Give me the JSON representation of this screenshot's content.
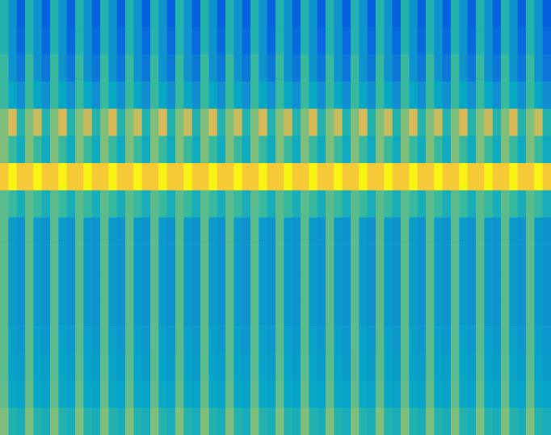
{
  "chart_data": {
    "type": "heatmap",
    "tick_labels": false,
    "color_range": [
      0,
      1
    ],
    "cells": [
      [
        0.45,
        0.3,
        0.12,
        0.45,
        0.3,
        0.12,
        0.45,
        0.3,
        0.12,
        0.45,
        0.3,
        0.12,
        0.45,
        0.3,
        0.12,
        0.45,
        0.3,
        0.12,
        0.45,
        0.3,
        0.12,
        0.45,
        0.3,
        0.12,
        0.45,
        0.3,
        0.12,
        0.45,
        0.3,
        0.12,
        0.45,
        0.3,
        0.12,
        0.45,
        0.3,
        0.12,
        0.45,
        0.3,
        0.12,
        0.45,
        0.3,
        0.12,
        0.45,
        0.3,
        0.12,
        0.45,
        0.3,
        0.12,
        0.45,
        0.3,
        0.12,
        0.45,
        0.3,
        0.12,
        0.45,
        0.3,
        0.12,
        0.45,
        0.3,
        0.12,
        0.45,
        0.3,
        0.12,
        0.45,
        0.3,
        0.12
      ],
      [
        0.45,
        0.3,
        0.15,
        0.45,
        0.3,
        0.15,
        0.45,
        0.3,
        0.15,
        0.45,
        0.3,
        0.15,
        0.45,
        0.3,
        0.15,
        0.45,
        0.3,
        0.15,
        0.45,
        0.3,
        0.15,
        0.45,
        0.3,
        0.15,
        0.45,
        0.3,
        0.15,
        0.45,
        0.3,
        0.15,
        0.45,
        0.3,
        0.15,
        0.45,
        0.3,
        0.15,
        0.45,
        0.3,
        0.15,
        0.45,
        0.3,
        0.15,
        0.45,
        0.3,
        0.15,
        0.45,
        0.3,
        0.15,
        0.45,
        0.3,
        0.15,
        0.45,
        0.3,
        0.15,
        0.45,
        0.3,
        0.15,
        0.45,
        0.3,
        0.15,
        0.45,
        0.3,
        0.15,
        0.45,
        0.3,
        0.15
      ],
      [
        0.5,
        0.3,
        0.2,
        0.5,
        0.3,
        0.2,
        0.5,
        0.3,
        0.2,
        0.5,
        0.3,
        0.2,
        0.5,
        0.3,
        0.2,
        0.5,
        0.3,
        0.2,
        0.5,
        0.3,
        0.2,
        0.5,
        0.3,
        0.2,
        0.5,
        0.3,
        0.2,
        0.5,
        0.3,
        0.2,
        0.5,
        0.3,
        0.2,
        0.5,
        0.3,
        0.2,
        0.5,
        0.3,
        0.2,
        0.5,
        0.3,
        0.2,
        0.5,
        0.3,
        0.2,
        0.5,
        0.3,
        0.2,
        0.5,
        0.3,
        0.2,
        0.5,
        0.3,
        0.2,
        0.5,
        0.3,
        0.2,
        0.5,
        0.3,
        0.2,
        0.5,
        0.3,
        0.2,
        0.5,
        0.3,
        0.2
      ],
      [
        0.5,
        0.38,
        0.28,
        0.5,
        0.38,
        0.28,
        0.5,
        0.38,
        0.28,
        0.5,
        0.38,
        0.28,
        0.5,
        0.38,
        0.28,
        0.5,
        0.38,
        0.28,
        0.5,
        0.38,
        0.28,
        0.5,
        0.38,
        0.28,
        0.5,
        0.38,
        0.28,
        0.5,
        0.38,
        0.28,
        0.5,
        0.38,
        0.28,
        0.5,
        0.38,
        0.28,
        0.5,
        0.38,
        0.28,
        0.5,
        0.38,
        0.28,
        0.5,
        0.38,
        0.28,
        0.5,
        0.38,
        0.28,
        0.5,
        0.38,
        0.28,
        0.5,
        0.38,
        0.28,
        0.5,
        0.38,
        0.28,
        0.5,
        0.38,
        0.28,
        0.5,
        0.38,
        0.28,
        0.5,
        0.38,
        0.28
      ],
      [
        0.6,
        0.75,
        0.45,
        0.6,
        0.72,
        0.45,
        0.6,
        0.75,
        0.45,
        0.6,
        0.72,
        0.45,
        0.6,
        0.75,
        0.45,
        0.6,
        0.72,
        0.45,
        0.6,
        0.75,
        0.45,
        0.6,
        0.72,
        0.45,
        0.6,
        0.75,
        0.45,
        0.6,
        0.72,
        0.45,
        0.6,
        0.75,
        0.45,
        0.6,
        0.72,
        0.45,
        0.6,
        0.75,
        0.45,
        0.6,
        0.72,
        0.45,
        0.6,
        0.75,
        0.45,
        0.6,
        0.72,
        0.45,
        0.6,
        0.75,
        0.45,
        0.6,
        0.72,
        0.45,
        0.6,
        0.75,
        0.45,
        0.6,
        0.72,
        0.45,
        0.6,
        0.75,
        0.45,
        0.6,
        0.72,
        0.45
      ],
      [
        0.6,
        0.5,
        0.4,
        0.6,
        0.5,
        0.4,
        0.6,
        0.5,
        0.4,
        0.6,
        0.5,
        0.4,
        0.6,
        0.5,
        0.4,
        0.6,
        0.5,
        0.4,
        0.6,
        0.5,
        0.4,
        0.6,
        0.5,
        0.4,
        0.6,
        0.5,
        0.4,
        0.6,
        0.5,
        0.4,
        0.6,
        0.5,
        0.4,
        0.6,
        0.5,
        0.4,
        0.6,
        0.5,
        0.4,
        0.6,
        0.5,
        0.4,
        0.6,
        0.5,
        0.4,
        0.6,
        0.5,
        0.4,
        0.6,
        0.5,
        0.4,
        0.6,
        0.5,
        0.4,
        0.6,
        0.5,
        0.4,
        0.6,
        0.5,
        0.4,
        0.6,
        0.5,
        0.4,
        0.6,
        0.5,
        0.4
      ],
      [
        0.85,
        0.98,
        0.85,
        0.85,
        0.98,
        0.85,
        0.85,
        0.98,
        0.85,
        0.85,
        0.98,
        0.85,
        0.85,
        0.98,
        0.85,
        0.85,
        0.98,
        0.85,
        0.85,
        0.98,
        0.85,
        0.85,
        0.98,
        0.85,
        0.85,
        0.98,
        0.85,
        0.85,
        0.98,
        0.85,
        0.85,
        0.98,
        0.85,
        0.85,
        0.98,
        0.85,
        0.85,
        0.98,
        0.85,
        0.85,
        0.98,
        0.85,
        0.85,
        0.98,
        0.85,
        0.85,
        0.98,
        0.85,
        0.85,
        0.98,
        0.85,
        0.85,
        0.98,
        0.85,
        0.85,
        0.98,
        0.85,
        0.85,
        0.98,
        0.85,
        0.85,
        0.98,
        0.85,
        0.85,
        0.98,
        0.85
      ],
      [
        0.55,
        0.5,
        0.42,
        0.55,
        0.5,
        0.42,
        0.55,
        0.5,
        0.42,
        0.55,
        0.5,
        0.42,
        0.55,
        0.5,
        0.42,
        0.55,
        0.5,
        0.42,
        0.55,
        0.5,
        0.42,
        0.55,
        0.5,
        0.42,
        0.55,
        0.5,
        0.42,
        0.55,
        0.5,
        0.42,
        0.55,
        0.5,
        0.42,
        0.55,
        0.5,
        0.42,
        0.55,
        0.5,
        0.42,
        0.55,
        0.5,
        0.42,
        0.55,
        0.5,
        0.42,
        0.55,
        0.5,
        0.42,
        0.55,
        0.5,
        0.42,
        0.55,
        0.5,
        0.42,
        0.55,
        0.5,
        0.42,
        0.55,
        0.5,
        0.42,
        0.55,
        0.5,
        0.42,
        0.55,
        0.5,
        0.42
      ],
      [
        0.55,
        0.33,
        0.3,
        0.55,
        0.33,
        0.3,
        0.55,
        0.33,
        0.3,
        0.55,
        0.33,
        0.3,
        0.55,
        0.33,
        0.3,
        0.55,
        0.33,
        0.3,
        0.55,
        0.33,
        0.3,
        0.55,
        0.33,
        0.3,
        0.55,
        0.33,
        0.3,
        0.55,
        0.33,
        0.3,
        0.55,
        0.33,
        0.3,
        0.55,
        0.33,
        0.3,
        0.55,
        0.33,
        0.3,
        0.55,
        0.33,
        0.3,
        0.55,
        0.33,
        0.3,
        0.55,
        0.33,
        0.3,
        0.55,
        0.33,
        0.3,
        0.55,
        0.33,
        0.3,
        0.55,
        0.33,
        0.3,
        0.55,
        0.33,
        0.3,
        0.55,
        0.33,
        0.3,
        0.55,
        0.33,
        0.3
      ],
      [
        0.55,
        0.33,
        0.3,
        0.55,
        0.33,
        0.3,
        0.55,
        0.33,
        0.3,
        0.55,
        0.33,
        0.3,
        0.55,
        0.33,
        0.3,
        0.55,
        0.33,
        0.3,
        0.55,
        0.33,
        0.3,
        0.55,
        0.33,
        0.3,
        0.55,
        0.33,
        0.3,
        0.55,
        0.33,
        0.3,
        0.55,
        0.33,
        0.3,
        0.55,
        0.33,
        0.3,
        0.55,
        0.33,
        0.3,
        0.55,
        0.33,
        0.3,
        0.55,
        0.33,
        0.3,
        0.55,
        0.33,
        0.3,
        0.55,
        0.33,
        0.3,
        0.55,
        0.33,
        0.3,
        0.55,
        0.33,
        0.3,
        0.55,
        0.33,
        0.3,
        0.55,
        0.33,
        0.3,
        0.55,
        0.33,
        0.3
      ],
      [
        0.55,
        0.33,
        0.3,
        0.55,
        0.33,
        0.3,
        0.55,
        0.33,
        0.3,
        0.55,
        0.33,
        0.3,
        0.55,
        0.33,
        0.3,
        0.55,
        0.33,
        0.3,
        0.55,
        0.33,
        0.3,
        0.55,
        0.33,
        0.3,
        0.55,
        0.33,
        0.3,
        0.55,
        0.33,
        0.3,
        0.55,
        0.33,
        0.3,
        0.55,
        0.33,
        0.3,
        0.55,
        0.33,
        0.3,
        0.55,
        0.33,
        0.3,
        0.55,
        0.33,
        0.3,
        0.55,
        0.33,
        0.3,
        0.55,
        0.33,
        0.3,
        0.55,
        0.33,
        0.3,
        0.55,
        0.33,
        0.3,
        0.55,
        0.33,
        0.3,
        0.55,
        0.33,
        0.3,
        0.55,
        0.33,
        0.3
      ],
      [
        0.55,
        0.33,
        0.3,
        0.55,
        0.33,
        0.3,
        0.55,
        0.33,
        0.3,
        0.55,
        0.33,
        0.3,
        0.55,
        0.33,
        0.3,
        0.55,
        0.33,
        0.3,
        0.55,
        0.33,
        0.3,
        0.55,
        0.33,
        0.3,
        0.55,
        0.33,
        0.3,
        0.55,
        0.33,
        0.3,
        0.55,
        0.33,
        0.3,
        0.55,
        0.33,
        0.3,
        0.55,
        0.33,
        0.3,
        0.55,
        0.33,
        0.3,
        0.55,
        0.33,
        0.3,
        0.55,
        0.33,
        0.3,
        0.55,
        0.33,
        0.3,
        0.55,
        0.33,
        0.3,
        0.55,
        0.33,
        0.3,
        0.55,
        0.33,
        0.3,
        0.55,
        0.33,
        0.3,
        0.55,
        0.33,
        0.3
      ],
      [
        0.55,
        0.35,
        0.32,
        0.55,
        0.35,
        0.32,
        0.55,
        0.35,
        0.32,
        0.55,
        0.35,
        0.32,
        0.55,
        0.35,
        0.32,
        0.55,
        0.35,
        0.32,
        0.55,
        0.35,
        0.32,
        0.55,
        0.35,
        0.32,
        0.55,
        0.35,
        0.32,
        0.55,
        0.35,
        0.32,
        0.55,
        0.35,
        0.32,
        0.55,
        0.35,
        0.32,
        0.55,
        0.35,
        0.32,
        0.55,
        0.35,
        0.32,
        0.55,
        0.35,
        0.32,
        0.55,
        0.35,
        0.32,
        0.55,
        0.35,
        0.32,
        0.55,
        0.35,
        0.32,
        0.55,
        0.35,
        0.32,
        0.55,
        0.35,
        0.32,
        0.55,
        0.35,
        0.32,
        0.55,
        0.35,
        0.32
      ],
      [
        0.55,
        0.36,
        0.34,
        0.55,
        0.36,
        0.34,
        0.55,
        0.36,
        0.34,
        0.55,
        0.36,
        0.34,
        0.55,
        0.36,
        0.34,
        0.55,
        0.36,
        0.34,
        0.55,
        0.36,
        0.34,
        0.55,
        0.36,
        0.34,
        0.55,
        0.36,
        0.34,
        0.55,
        0.36,
        0.34,
        0.55,
        0.36,
        0.34,
        0.55,
        0.36,
        0.34,
        0.55,
        0.36,
        0.34,
        0.55,
        0.36,
        0.34,
        0.55,
        0.36,
        0.34,
        0.55,
        0.36,
        0.34,
        0.55,
        0.36,
        0.34,
        0.55,
        0.36,
        0.34,
        0.55,
        0.36,
        0.34,
        0.55,
        0.36,
        0.34,
        0.55,
        0.36,
        0.34,
        0.55,
        0.36,
        0.34
      ],
      [
        0.56,
        0.38,
        0.36,
        0.56,
        0.38,
        0.36,
        0.56,
        0.38,
        0.36,
        0.56,
        0.38,
        0.36,
        0.56,
        0.38,
        0.36,
        0.56,
        0.38,
        0.36,
        0.56,
        0.38,
        0.36,
        0.56,
        0.38,
        0.36,
        0.56,
        0.38,
        0.36,
        0.56,
        0.38,
        0.36,
        0.56,
        0.38,
        0.36,
        0.56,
        0.38,
        0.36,
        0.56,
        0.38,
        0.36,
        0.56,
        0.38,
        0.36,
        0.56,
        0.38,
        0.36,
        0.56,
        0.38,
        0.36,
        0.56,
        0.38,
        0.36,
        0.56,
        0.38,
        0.36,
        0.56,
        0.38,
        0.36,
        0.56,
        0.38,
        0.36,
        0.56,
        0.38,
        0.36,
        0.56,
        0.38,
        0.36
      ],
      [
        0.6,
        0.45,
        0.42,
        0.6,
        0.45,
        0.42,
        0.6,
        0.45,
        0.42,
        0.6,
        0.45,
        0.42,
        0.6,
        0.45,
        0.42,
        0.6,
        0.45,
        0.42,
        0.6,
        0.45,
        0.42,
        0.6,
        0.45,
        0.42,
        0.6,
        0.45,
        0.42,
        0.6,
        0.45,
        0.42,
        0.6,
        0.45,
        0.42,
        0.6,
        0.45,
        0.42,
        0.6,
        0.45,
        0.42,
        0.6,
        0.45,
        0.42,
        0.6,
        0.45,
        0.42,
        0.6,
        0.45,
        0.42,
        0.6,
        0.45,
        0.42,
        0.6,
        0.45,
        0.42,
        0.6,
        0.45,
        0.42,
        0.6,
        0.45,
        0.42,
        0.6,
        0.45,
        0.42,
        0.6,
        0.45,
        0.42
      ]
    ]
  }
}
